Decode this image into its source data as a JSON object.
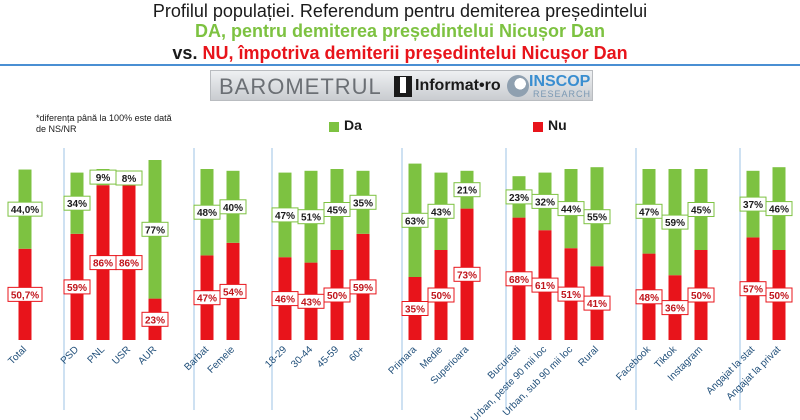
{
  "header": {
    "title_line1": "Profilul populației. Referendum pentru demiterea președintelui",
    "title_line2": "DA, pentru demiterea președintelui Nicușor Dan",
    "title_line3_vs": "vs.",
    "title_line3_nu": "NU,",
    "title_line3_rest": "împotriva demiterii președintelui Nicușor Dan"
  },
  "logos": {
    "barometrul": "BAROMETRUL",
    "informat": "Informat•ro",
    "inscop": "INSCOP",
    "research": "RESEARCH"
  },
  "note": "*diferența până la 100% este dată de NS/NR",
  "colors": {
    "da": "#7dc241",
    "nu": "#e8141b",
    "axis_text": "#1f4e79",
    "group_sep": "#9cc3e4"
  },
  "chart_data": {
    "type": "bar",
    "stacked": true,
    "ylim": [
      0,
      100
    ],
    "legend": {
      "position": "top-center",
      "entries": [
        "Da",
        "Nu"
      ]
    },
    "categories": [
      "Total",
      "PSD",
      "PNL",
      "USR",
      "AUR",
      "Barbat",
      "Femeie",
      "18-29",
      "30-44",
      "45-59",
      "60+",
      "Primara",
      "Medie",
      "Superioara",
      "Bucuresti",
      "Urban, peste 90 mii loc",
      "Urban, sub 90 mii loc",
      "Rural",
      "Facebook",
      "Tiktok",
      "Instagram",
      "Angajat la stat",
      "Angajat la privat"
    ],
    "groups": [
      [
        0
      ],
      [
        1,
        2,
        3,
        4
      ],
      [
        5,
        6
      ],
      [
        7,
        8,
        9,
        10
      ],
      [
        11,
        12,
        13
      ],
      [
        14,
        15,
        16,
        17
      ],
      [
        18,
        19,
        20
      ],
      [
        21,
        22
      ]
    ],
    "series": [
      {
        "name": "Nu",
        "color": "#e8141b",
        "values": [
          50.7,
          59,
          86,
          86,
          23,
          47,
          54,
          46,
          43,
          50,
          59,
          35,
          50,
          73,
          68,
          61,
          51,
          41,
          48,
          36,
          50,
          57,
          50
        ],
        "labels": [
          "50,7%",
          "59%",
          "86%",
          "86%",
          "23%",
          "47%",
          "54%",
          "46%",
          "43%",
          "50%",
          "59%",
          "35%",
          "50%",
          "73%",
          "68%",
          "61%",
          "51%",
          "41%",
          "48%",
          "36%",
          "50%",
          "57%",
          "50%"
        ]
      },
      {
        "name": "Da",
        "color": "#7dc241",
        "values": [
          44.0,
          34,
          9,
          8,
          77,
          48,
          40,
          47,
          51,
          45,
          35,
          63,
          43,
          21,
          23,
          32,
          44,
          55,
          47,
          59,
          45,
          37,
          46
        ],
        "labels": [
          "44,0%",
          "34%",
          "9%",
          "8%",
          "77%",
          "48%",
          "40%",
          "47%",
          "51%",
          "45%",
          "35%",
          "63%",
          "43%",
          "21%",
          "23%",
          "32%",
          "44%",
          "55%",
          "47%",
          "59%",
          "45%",
          "37%",
          "46%"
        ]
      }
    ]
  }
}
